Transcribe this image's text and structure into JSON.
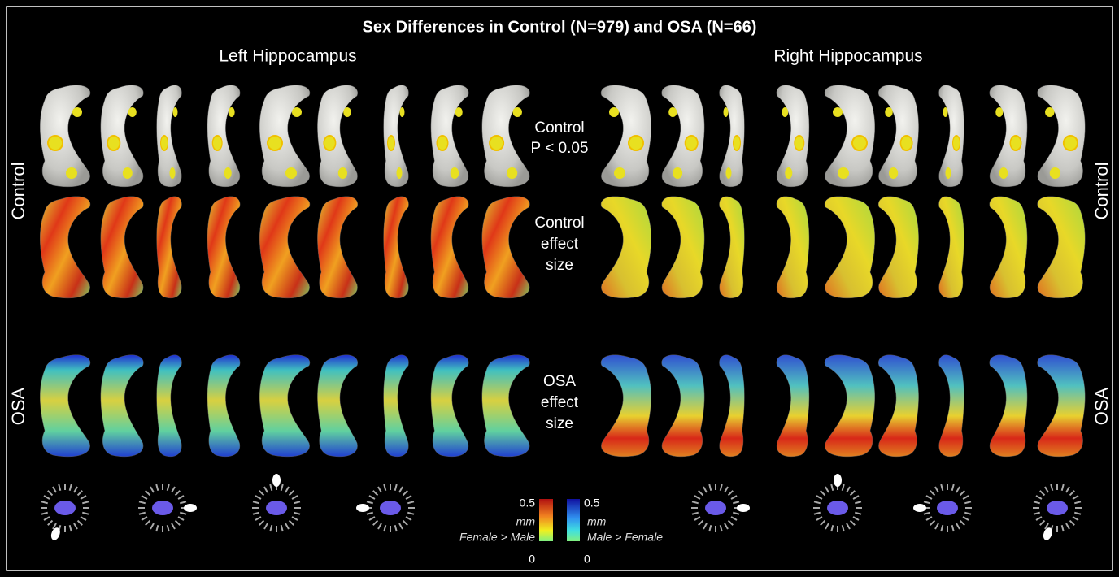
{
  "title": "Sex Differences in Control (N=979) and OSA (N=66)",
  "columns": [
    "Left Hippocampus",
    "Right Hippocampus"
  ],
  "side_labels": {
    "left": [
      "Control",
      "OSA"
    ],
    "right": [
      "Control",
      "OSA"
    ]
  },
  "center_labels": [
    [
      "Control",
      "P < 0.05"
    ],
    [
      "Control",
      "effect",
      "size"
    ],
    [
      "OSA",
      "effect",
      "size"
    ]
  ],
  "colorbars": [
    {
      "max": "0.5",
      "unit": "mm",
      "label": "Female > Male",
      "min": "0"
    },
    {
      "max": "0.5",
      "unit": "mm",
      "label": "Male > Female",
      "min": "0"
    }
  ]
}
